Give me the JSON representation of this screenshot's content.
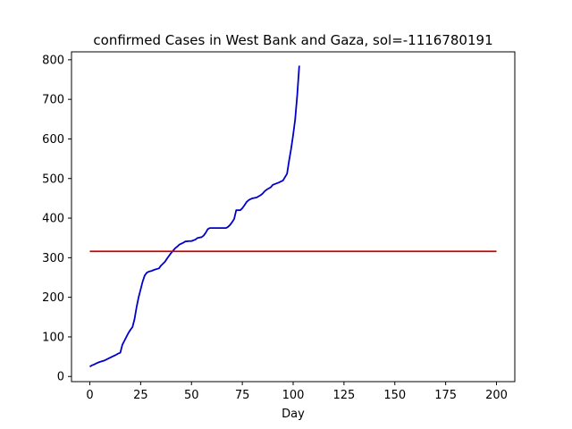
{
  "chart_data": {
    "type": "line",
    "title": "confirmed Cases in West Bank and Gaza, sol=-1116780191",
    "xlabel": "Day",
    "ylabel": "",
    "xlim": [
      -9,
      209
    ],
    "ylim": [
      -13,
      820
    ],
    "x_ticks": [
      0,
      25,
      50,
      75,
      100,
      125,
      150,
      175,
      200
    ],
    "y_ticks": [
      0,
      100,
      200,
      300,
      400,
      500,
      600,
      700,
      800
    ],
    "grid": false,
    "series": [
      {
        "color": "#0000cc",
        "x": [
          0,
          1,
          2,
          4,
          5,
          7,
          9,
          11,
          13,
          14,
          15,
          16,
          17,
          18,
          19,
          20,
          21,
          22,
          23,
          24,
          25,
          26,
          27,
          28,
          29,
          30,
          31,
          32,
          34,
          35,
          36,
          37,
          38,
          39,
          40,
          41,
          42,
          43,
          44,
          46,
          47,
          49,
          50,
          52,
          53,
          55,
          56,
          57,
          58,
          59,
          60,
          62,
          65,
          67,
          68,
          69,
          70,
          71,
          72,
          74,
          75,
          76,
          77,
          78,
          79,
          80,
          82,
          84,
          85,
          86,
          87,
          89,
          90,
          92,
          93,
          95,
          97,
          98,
          99,
          100,
          101,
          102,
          103
        ],
        "y": [
          25,
          28,
          30,
          35,
          37,
          40,
          45,
          50,
          55,
          58,
          60,
          80,
          90,
          100,
          110,
          118,
          125,
          145,
          175,
          200,
          220,
          240,
          255,
          262,
          265,
          266,
          268,
          270,
          273,
          280,
          285,
          290,
          298,
          305,
          312,
          318,
          324,
          328,
          333,
          338,
          341,
          342,
          342,
          346,
          350,
          352,
          356,
          363,
          372,
          375,
          375,
          375,
          375,
          375,
          378,
          383,
          390,
          398,
          420,
          420,
          425,
          432,
          440,
          445,
          448,
          450,
          452,
          458,
          462,
          468,
          472,
          478,
          484,
          488,
          490,
          495,
          512,
          545,
          575,
          610,
          650,
          710,
          785
        ]
      },
      {
        "color": "#cc0000",
        "x": [
          0,
          200
        ],
        "y": [
          316,
          316
        ]
      }
    ]
  }
}
